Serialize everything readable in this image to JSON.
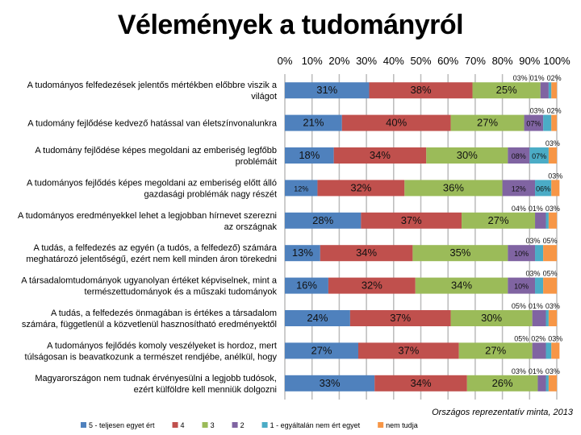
{
  "title": "Vélemények a tudományról",
  "note": "Országos reprezentatív minta, 2013",
  "chart_data": {
    "type": "bar",
    "orientation": "horizontal",
    "stacked": true,
    "percent": true,
    "xlim": [
      0,
      100
    ],
    "grid": true,
    "xticks": [
      "0%",
      "10%",
      "20%",
      "30%",
      "40%",
      "50%",
      "60%",
      "70%",
      "80%",
      "90%",
      "100%"
    ],
    "legend_position": "bottom",
    "categories": [
      [
        "A tudományos felfedezések jelentős mértékben előbbre viszik a",
        "világot"
      ],
      [
        "A tudomány fejlődése kedvező hatással van életszínvonalunkra"
      ],
      [
        "A tudomány fejlődése képes megoldani az emberiség legfőbb",
        "problémáit"
      ],
      [
        "A tudományos fejlődés képes megoldani az emberiség előtt álló",
        "gazdasági problémák nagy részét"
      ],
      [
        "A tudományos eredményekkel lehet a legjobban hírnevet szerezni",
        "az országnak"
      ],
      [
        "A tudás, a felfedezés az egyén (a tudós, a felfedező) számára",
        "meghatározó jelentőségű, ezért nem kell minden áron törekedni"
      ],
      [
        "A társadalomtudományok ugyanolyan értéket képviselnek, mint a",
        "természettudományok és a műszaki tudományok"
      ],
      [
        "A tudás, a felfedezés önmagában is értékes a társadalom",
        "számára, függetlenül a közvetlenül hasznosítható eredményektől"
      ],
      [
        "A tudományos fejlődés komoly veszélyeket is hordoz, mert",
        "túlságosan is beavatkozunk a természet rendjébe, anélkül, hogy"
      ],
      [
        "Magyarországon nem tudnak érvényesülni a legjobb tudósok,",
        "ezért külföldre kell menniük dolgozni"
      ]
    ],
    "series": [
      {
        "name": "5 - teljesen egyet ért",
        "color": "#4f81bd",
        "values": [
          31,
          21,
          18,
          12,
          28,
          13,
          16,
          24,
          27,
          33
        ]
      },
      {
        "name": "4",
        "color": "#c0504d",
        "values": [
          38,
          40,
          34,
          32,
          37,
          34,
          32,
          37,
          37,
          34
        ]
      },
      {
        "name": "3",
        "color": "#9bbb59",
        "values": [
          25,
          27,
          30,
          36,
          27,
          35,
          34,
          30,
          27,
          26
        ]
      },
      {
        "name": "2",
        "color": "#8064a2",
        "values": [
          3,
          7,
          8,
          12,
          4,
          10,
          10,
          5,
          5,
          3
        ]
      },
      {
        "name": "1 - egyáltalán nem ért egyet",
        "color": "#4bacc6",
        "values": [
          1,
          3,
          7,
          6,
          1,
          3,
          3,
          1,
          2,
          1
        ]
      },
      {
        "name": "nem tudja",
        "color": "#f79646",
        "values": [
          2,
          2,
          3,
          3,
          3,
          5,
          5,
          3,
          3,
          3
        ]
      }
    ]
  }
}
